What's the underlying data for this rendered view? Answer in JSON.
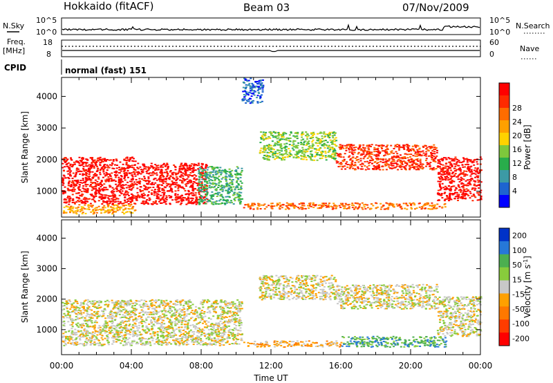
{
  "header": {
    "station": "Hokkaido (fitACF)",
    "beam": "Beam 03",
    "date": "07/Nov/2009"
  },
  "strips": {
    "nsky_label": "N.Sky",
    "nsky_ticks": [
      "10^5",
      "10^0"
    ],
    "nsearch_label": "N.Search",
    "nsearch_ticks": [
      "10^5",
      "10^0"
    ],
    "freq_label": "Freq.",
    "freq_unit": "[MHz]",
    "freq_ticks": [
      "18",
      "8"
    ],
    "nave_label": "Nave",
    "nave_ticks": [
      "60",
      "0"
    ],
    "cpid_label": "CPID",
    "cpid_value": "normal (fast) 151"
  },
  "chart_data": [
    {
      "type": "heatmap",
      "name": "power",
      "ylabel": "Slant Range [km]",
      "yticks": [
        "1000",
        "2000",
        "3000",
        "4000"
      ],
      "ylim": [
        180,
        4600
      ],
      "xlim": [
        0,
        24
      ],
      "colorbar_label": "Power [dB]",
      "colorbar_ticks": [
        "4",
        "8",
        "12",
        "16",
        "20",
        "24",
        "28"
      ],
      "colors": [
        "#0000ff",
        "#1e64d0",
        "#3c9aa5",
        "#29ad4b",
        "#7ec83c",
        "#ffd200",
        "#ffa000",
        "#ff6c00",
        "#ff2a00",
        "#ff0000"
      ],
      "regions": [
        {
          "t": [
            0,
            4.2
          ],
          "r": [
            600,
            2100
          ],
          "level": 9
        },
        {
          "t": [
            0,
            4.2
          ],
          "r": [
            300,
            600
          ],
          "level": 6
        },
        {
          "t": [
            4.2,
            8.3
          ],
          "r": [
            600,
            1900
          ],
          "level": 9
        },
        {
          "t": [
            7.8,
            10.3
          ],
          "r": [
            600,
            1800
          ],
          "level": 3
        },
        {
          "t": [
            10.3,
            11.5
          ],
          "r": [
            3800,
            4600
          ],
          "level": 1
        },
        {
          "t": [
            11.3,
            15.7
          ],
          "r": [
            2000,
            2900
          ],
          "level": 4
        },
        {
          "t": [
            15.7,
            21.5
          ],
          "r": [
            1700,
            2500
          ],
          "level": 8
        },
        {
          "t": [
            21.5,
            24
          ],
          "r": [
            700,
            2100
          ],
          "level": 9
        },
        {
          "t": [
            10.3,
            22
          ],
          "r": [
            450,
            650
          ],
          "level": 7
        }
      ]
    },
    {
      "type": "heatmap",
      "name": "velocity",
      "ylabel": "Slant Range [km]",
      "yticks": [
        "1000",
        "2000",
        "3000",
        "4000"
      ],
      "ylim": [
        180,
        4600
      ],
      "xlim": [
        0,
        24
      ],
      "xticks": [
        "00:00",
        "04:00",
        "08:00",
        "12:00",
        "16:00",
        "20:00",
        "00:00"
      ],
      "xlabel": "Time UT",
      "colorbar_label": "Velocity [m s",
      "colorbar_label_sup": "-1",
      "colorbar_label_end": "]",
      "colorbar_ticks": [
        "200",
        "100",
        "50",
        "15",
        "-15",
        "-50",
        "-100",
        "-200"
      ],
      "colors": [
        "#0032c8",
        "#2678d8",
        "#4caf50",
        "#88cc3c",
        "#c8c8c8",
        "#ffa000",
        "#ff7800",
        "#ff3c00",
        "#ff0000"
      ],
      "regions": [
        {
          "t": [
            0,
            10.3
          ],
          "r": [
            500,
            2000
          ],
          "level": 4
        },
        {
          "t": [
            11.3,
            15.7
          ],
          "r": [
            2000,
            2800
          ],
          "level": 4
        },
        {
          "t": [
            15.7,
            21.5
          ],
          "r": [
            1700,
            2500
          ],
          "level": 4
        },
        {
          "t": [
            21.5,
            24
          ],
          "r": [
            800,
            2100
          ],
          "level": 4
        },
        {
          "t": [
            10.3,
            16
          ],
          "r": [
            450,
            650
          ],
          "level": 5
        },
        {
          "t": [
            16,
            22
          ],
          "r": [
            450,
            800
          ],
          "level": 2
        }
      ]
    }
  ]
}
